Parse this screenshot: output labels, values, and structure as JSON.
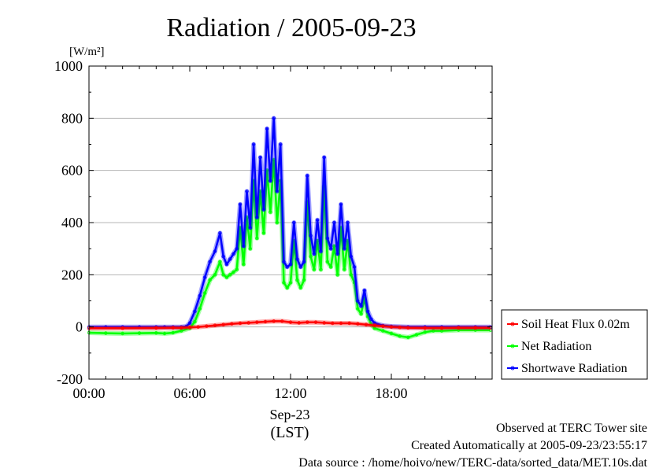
{
  "chart_data": {
    "type": "line",
    "title": "Radiation / 2005-09-23",
    "ylabel": "[W/m²]",
    "xlabel": "(LST)",
    "date_label": "Sep-23",
    "ylim": [
      -200,
      1000
    ],
    "xlim": [
      0,
      24
    ],
    "y_ticks": [
      -200,
      0,
      200,
      400,
      600,
      800,
      1000
    ],
    "y_tick_labels": [
      "-200",
      "0",
      "200",
      "400",
      "600",
      "800",
      "1000"
    ],
    "x_ticks": [
      0,
      6,
      12,
      18
    ],
    "x_tick_labels": [
      "00:00",
      "06:00",
      "12:00",
      "18:00"
    ],
    "grid": "horizontal",
    "legend_position": "right",
    "series": [
      {
        "name": "Soil Heat Flux 0.02m",
        "color": "#ff0000",
        "x": [
          0,
          2,
          4,
          5,
          5.5,
          6,
          6.5,
          7,
          7.5,
          8,
          8.5,
          9,
          9.5,
          10,
          10.5,
          11,
          11.5,
          12,
          12.5,
          13,
          13.5,
          14,
          14.5,
          15,
          15.5,
          16,
          16.5,
          17,
          17.5,
          18,
          18.5,
          19,
          20,
          21,
          22,
          23,
          23.9
        ],
        "values": [
          -5,
          -5,
          -4,
          -3,
          -3,
          -2,
          0,
          3,
          6,
          9,
          12,
          14,
          16,
          18,
          20,
          22,
          22,
          18,
          16,
          18,
          18,
          16,
          14,
          14,
          14,
          12,
          9,
          6,
          3,
          0,
          -2,
          -3,
          -4,
          -4,
          -3,
          -3,
          -3
        ]
      },
      {
        "name": "Net Radiation",
        "color": "#00ff00",
        "x": [
          0,
          1,
          2,
          3,
          4,
          4.5,
          5,
          5.5,
          6,
          6.3,
          6.6,
          6.9,
          7.2,
          7.5,
          7.8,
          8.0,
          8.2,
          8.4,
          8.6,
          8.8,
          9.0,
          9.2,
          9.4,
          9.6,
          9.8,
          10.0,
          10.2,
          10.4,
          10.6,
          10.8,
          11.0,
          11.2,
          11.4,
          11.6,
          11.8,
          12.0,
          12.2,
          12.4,
          12.6,
          12.8,
          13.0,
          13.2,
          13.4,
          13.6,
          13.8,
          14.0,
          14.2,
          14.4,
          14.6,
          14.8,
          15.0,
          15.2,
          15.4,
          15.6,
          15.8,
          16.0,
          16.2,
          16.4,
          16.6,
          16.8,
          17.0,
          17.5,
          18.0,
          18.5,
          19.0,
          19.5,
          20.0,
          20.5,
          21.0,
          22.0,
          23.0,
          23.9
        ],
        "values": [
          -22,
          -24,
          -25,
          -24,
          -23,
          -25,
          -22,
          -15,
          -5,
          20,
          70,
          130,
          180,
          200,
          250,
          200,
          190,
          200,
          210,
          220,
          380,
          240,
          420,
          300,
          560,
          340,
          520,
          360,
          600,
          440,
          640,
          400,
          560,
          170,
          150,
          170,
          330,
          180,
          150,
          180,
          480,
          270,
          220,
          330,
          220,
          540,
          250,
          230,
          310,
          200,
          380,
          220,
          330,
          200,
          170,
          70,
          50,
          110,
          40,
          10,
          -5,
          -15,
          -25,
          -35,
          -40,
          -30,
          -20,
          -15,
          -15,
          -12,
          -12,
          -12
        ]
      },
      {
        "name": "Shortwave Radiation",
        "color": "#0000ff",
        "x": [
          0,
          1,
          2,
          3,
          4,
          4.5,
          5,
          5.5,
          5.8,
          6,
          6.3,
          6.6,
          6.9,
          7.2,
          7.5,
          7.8,
          8.0,
          8.2,
          8.4,
          8.6,
          8.8,
          9.0,
          9.2,
          9.4,
          9.6,
          9.8,
          10.0,
          10.2,
          10.4,
          10.6,
          10.8,
          11.0,
          11.2,
          11.4,
          11.6,
          11.8,
          12.0,
          12.2,
          12.4,
          12.6,
          12.8,
          13.0,
          13.2,
          13.4,
          13.6,
          13.8,
          14.0,
          14.2,
          14.4,
          14.6,
          14.8,
          15.0,
          15.2,
          15.4,
          15.6,
          15.8,
          16.0,
          16.2,
          16.4,
          16.6,
          16.8,
          17.0,
          17.5,
          18.0,
          19.0,
          20.0,
          21.0,
          22.0,
          23.0,
          23.9
        ],
        "values": [
          0,
          0,
          0,
          0,
          0,
          0,
          0,
          0,
          2,
          15,
          60,
          120,
          190,
          250,
          290,
          360,
          270,
          240,
          260,
          280,
          300,
          470,
          310,
          520,
          380,
          700,
          420,
          650,
          450,
          760,
          560,
          800,
          520,
          700,
          250,
          230,
          240,
          400,
          260,
          230,
          250,
          580,
          350,
          280,
          410,
          290,
          650,
          340,
          300,
          400,
          280,
          470,
          300,
          400,
          270,
          230,
          100,
          80,
          140,
          60,
          30,
          15,
          5,
          2,
          0,
          0,
          0,
          0,
          0,
          0
        ]
      }
    ]
  },
  "footer": {
    "line1": "Observed at TERC Tower site",
    "line2": "Created Automatically at 2005-09-23/23:55:17",
    "line3": "Data source : /home/hoivo/new/TERC-data/sorted_data/MET.10s.dat"
  }
}
